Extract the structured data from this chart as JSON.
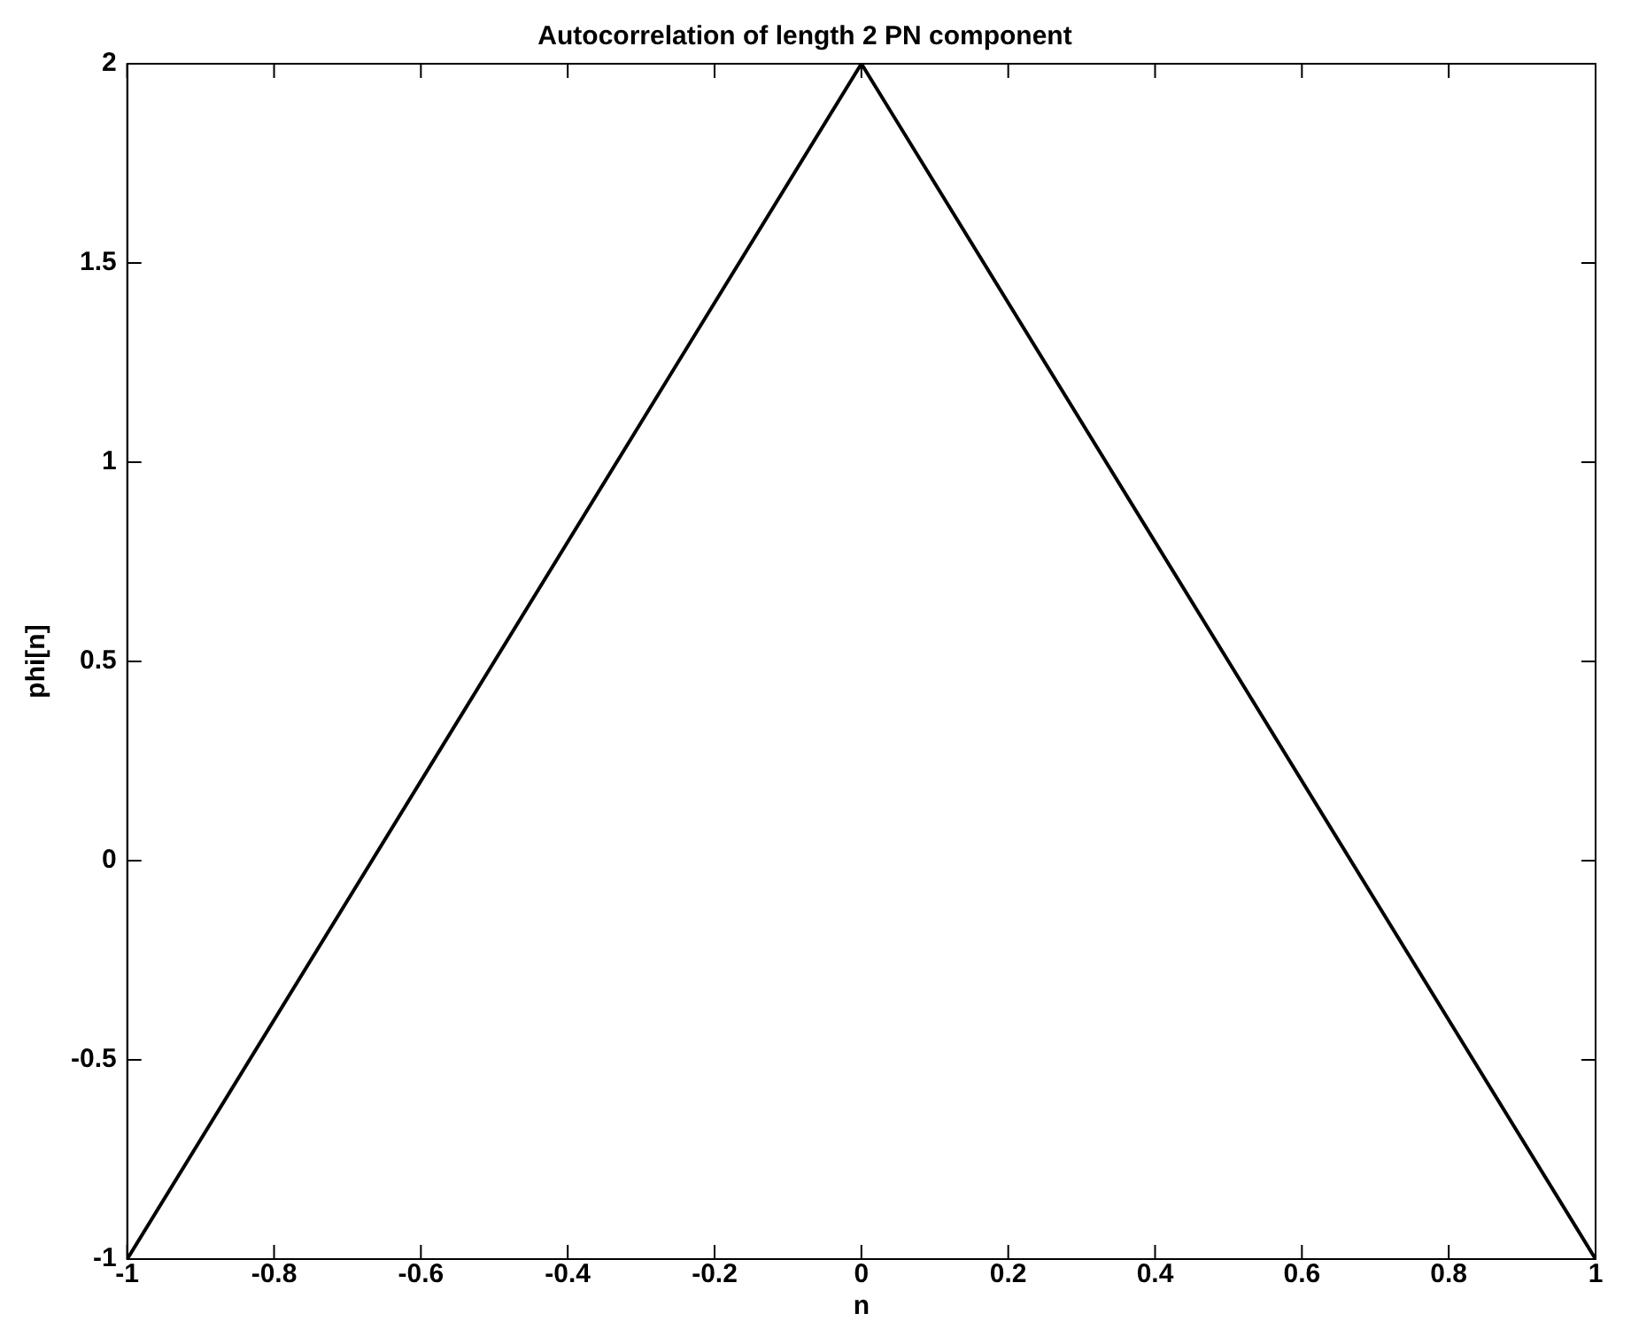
{
  "chart_data": {
    "type": "line",
    "title": "Autocorrelation of length 2 PN component",
    "xlabel": "n",
    "ylabel": "phi[n]",
    "x": [
      -1,
      0,
      1
    ],
    "series": [
      {
        "color": "#000000",
        "values": [
          -1,
          2,
          -1
        ]
      }
    ],
    "xlim": [
      -1,
      1
    ],
    "xticks": [
      -1,
      -0.8,
      -0.6,
      -0.4,
      -0.2,
      0,
      0.2,
      0.4,
      0.6,
      0.8,
      1
    ],
    "ylim": [
      -1,
      2
    ],
    "yticks": [
      -1,
      -0.5,
      0,
      0.5,
      1,
      1.5,
      2
    ],
    "grid": false,
    "legend": false,
    "marker": "none",
    "line_style": "solid"
  }
}
